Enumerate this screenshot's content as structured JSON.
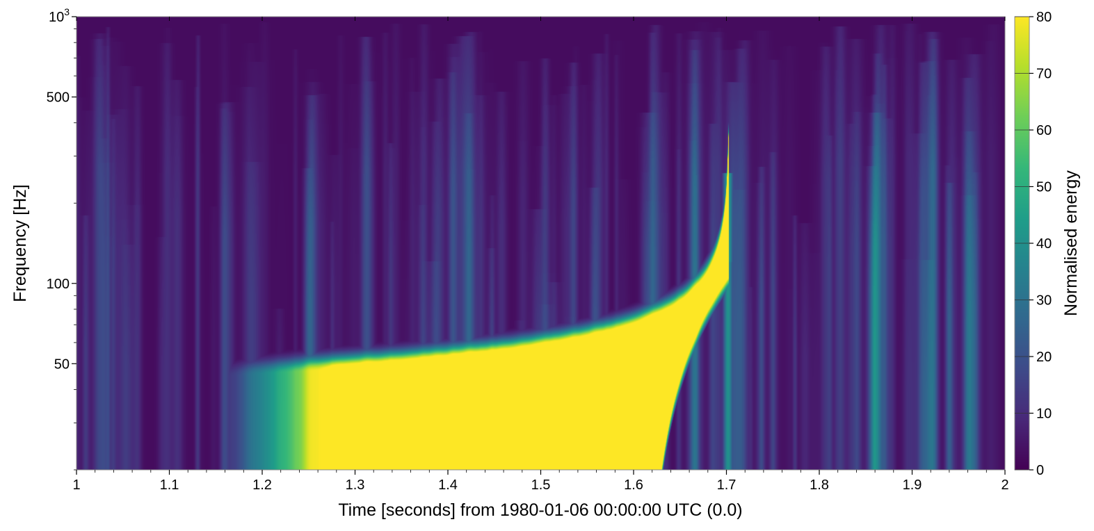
{
  "chart_data": {
    "type": "heatmap",
    "title": "",
    "xlabel": "Time [seconds] from 1980-01-06 00:00:00 UTC (0.0)",
    "ylabel": "Frequency [Hz]",
    "xlim": [
      1,
      2
    ],
    "ylim": [
      20,
      1000
    ],
    "yscale": "log",
    "grid": false,
    "x_ticks": [
      {
        "value": 1.0,
        "label": "1"
      },
      {
        "value": 1.1,
        "label": "1.1"
      },
      {
        "value": 1.2,
        "label": "1.2"
      },
      {
        "value": 1.3,
        "label": "1.3"
      },
      {
        "value": 1.4,
        "label": "1.4"
      },
      {
        "value": 1.5,
        "label": "1.5"
      },
      {
        "value": 1.6,
        "label": "1.6"
      },
      {
        "value": 1.7,
        "label": "1.7"
      },
      {
        "value": 1.8,
        "label": "1.8"
      },
      {
        "value": 1.9,
        "label": "1.9"
      },
      {
        "value": 2.0,
        "label": "2"
      }
    ],
    "y_ticks": [
      {
        "value": 50,
        "label": "50"
      },
      {
        "value": 100,
        "label": "100"
      },
      {
        "value": 500,
        "label": "500"
      },
      {
        "value": 1000,
        "label": "10",
        "sup": "3"
      }
    ],
    "colorbar": {
      "label": "Normalised energy",
      "range": [
        0,
        80
      ],
      "colormap": "viridis",
      "ticks": [
        0,
        10,
        20,
        30,
        40,
        50,
        60,
        70,
        80
      ],
      "colors": [
        "#440154",
        "#482878",
        "#3e4a89",
        "#31688e",
        "#26828e",
        "#1f9e89",
        "#35b779",
        "#6ece58",
        "#b5de2b",
        "#fde725"
      ]
    },
    "features": [
      {
        "name": "chirp track",
        "approx": "yellow band rising from ~20 Hz near t=1.3 s to ~180 Hz at t=1.70 s, energy ≥ 80"
      },
      {
        "name": "background",
        "approx": "low energy (~0–10) elsewhere"
      }
    ]
  }
}
